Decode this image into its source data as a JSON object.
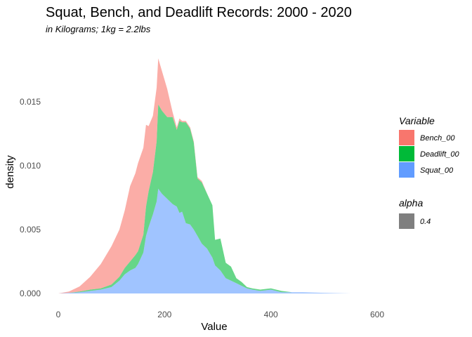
{
  "chart_data": {
    "type": "area",
    "title": "Squat, Bench, and Deadlift Records: 2000 - 2020",
    "subtitle": "in Kilograms; 1kg = 2.2lbs",
    "xlabel": "Value",
    "ylabel": "density",
    "xlim": [
      0,
      700
    ],
    "ylim": [
      0,
      0.019
    ],
    "x_ticks": [
      "0",
      "200",
      "400",
      "600"
    ],
    "x_tick_values": [
      0,
      200,
      400,
      600
    ],
    "y_ticks": [
      "0.000",
      "0.005",
      "0.010",
      "0.015"
    ],
    "y_tick_values": [
      0,
      0.005,
      0.01,
      0.015
    ],
    "stacked": true,
    "grid": false,
    "legend_position": "right",
    "x": [
      0,
      20,
      40,
      60,
      80,
      100,
      115,
      125,
      135,
      145,
      150,
      160,
      165,
      170,
      178,
      185,
      188,
      195,
      205,
      215,
      223,
      228,
      233,
      240,
      248,
      255,
      262,
      270,
      280,
      290,
      295,
      305,
      315,
      325,
      335,
      345,
      355,
      365,
      380,
      400,
      420,
      440,
      460,
      500,
      550
    ],
    "series": [
      {
        "name": "Squat_00",
        "color": "#619CFF",
        "values": [
          0,
          5e-05,
          0.0001,
          0.0002,
          0.0003,
          0.0005,
          0.001,
          0.0015,
          0.0018,
          0.002,
          0.0023,
          0.0032,
          0.0045,
          0.0052,
          0.0062,
          0.0072,
          0.0082,
          0.0078,
          0.0074,
          0.007,
          0.0068,
          0.0063,
          0.0064,
          0.0055,
          0.0054,
          0.005,
          0.0045,
          0.0039,
          0.0035,
          0.0028,
          0.0022,
          0.0018,
          0.0012,
          0.001,
          0.0008,
          0.0006,
          0.0004,
          0.0003,
          0.0002,
          0.0003,
          0.0001,
          0.0001,
          0.0001,
          5e-05,
          0
        ]
      },
      {
        "name": "Deadlift_00",
        "color": "#00BA38",
        "values": [
          0,
          0,
          5e-05,
          0.0001,
          0.0001,
          0.0002,
          0.0003,
          0.0005,
          0.0007,
          0.001,
          0.001,
          0.0014,
          0.0023,
          0.0028,
          0.0033,
          0.0047,
          0.0066,
          0.0065,
          0.0064,
          0.0068,
          0.006,
          0.0072,
          0.007,
          0.0079,
          0.0075,
          0.0068,
          0.0045,
          0.0048,
          0.0043,
          0.0041,
          0.002,
          0.0025,
          0.0012,
          0.0011,
          0.0004,
          0.0003,
          0.0001,
          0.0001,
          0.0001,
          0.0001,
          0.0001,
          0,
          0,
          0,
          0
        ]
      },
      {
        "name": "Bench_00",
        "color": "#F8766D",
        "values": [
          0,
          0.0001,
          0.0004,
          0.001,
          0.0019,
          0.003,
          0.0037,
          0.0045,
          0.0059,
          0.0064,
          0.0069,
          0.0068,
          0.0064,
          0.0051,
          0.0044,
          0.0042,
          0.0036,
          0.0031,
          0.0022,
          0.0004,
          0.0002,
          0.0002,
          0.0001,
          0.0001,
          0.0001,
          0.0001,
          0.0001,
          0.0001,
          0,
          0,
          0,
          0,
          0,
          0,
          0,
          0,
          0,
          0,
          0,
          0,
          0,
          0,
          0,
          0,
          0
        ]
      }
    ]
  },
  "legend": {
    "variable_title": "Variable",
    "variable_items": [
      {
        "label": "Bench_00",
        "color": "#F8766D"
      },
      {
        "label": "Deadlift_00",
        "color": "#00BA38"
      },
      {
        "label": "Squat_00",
        "color": "#619CFF"
      }
    ],
    "alpha_title": "alpha",
    "alpha_items": [
      {
        "label": "0.4",
        "color": "#7f7f7f"
      }
    ]
  }
}
